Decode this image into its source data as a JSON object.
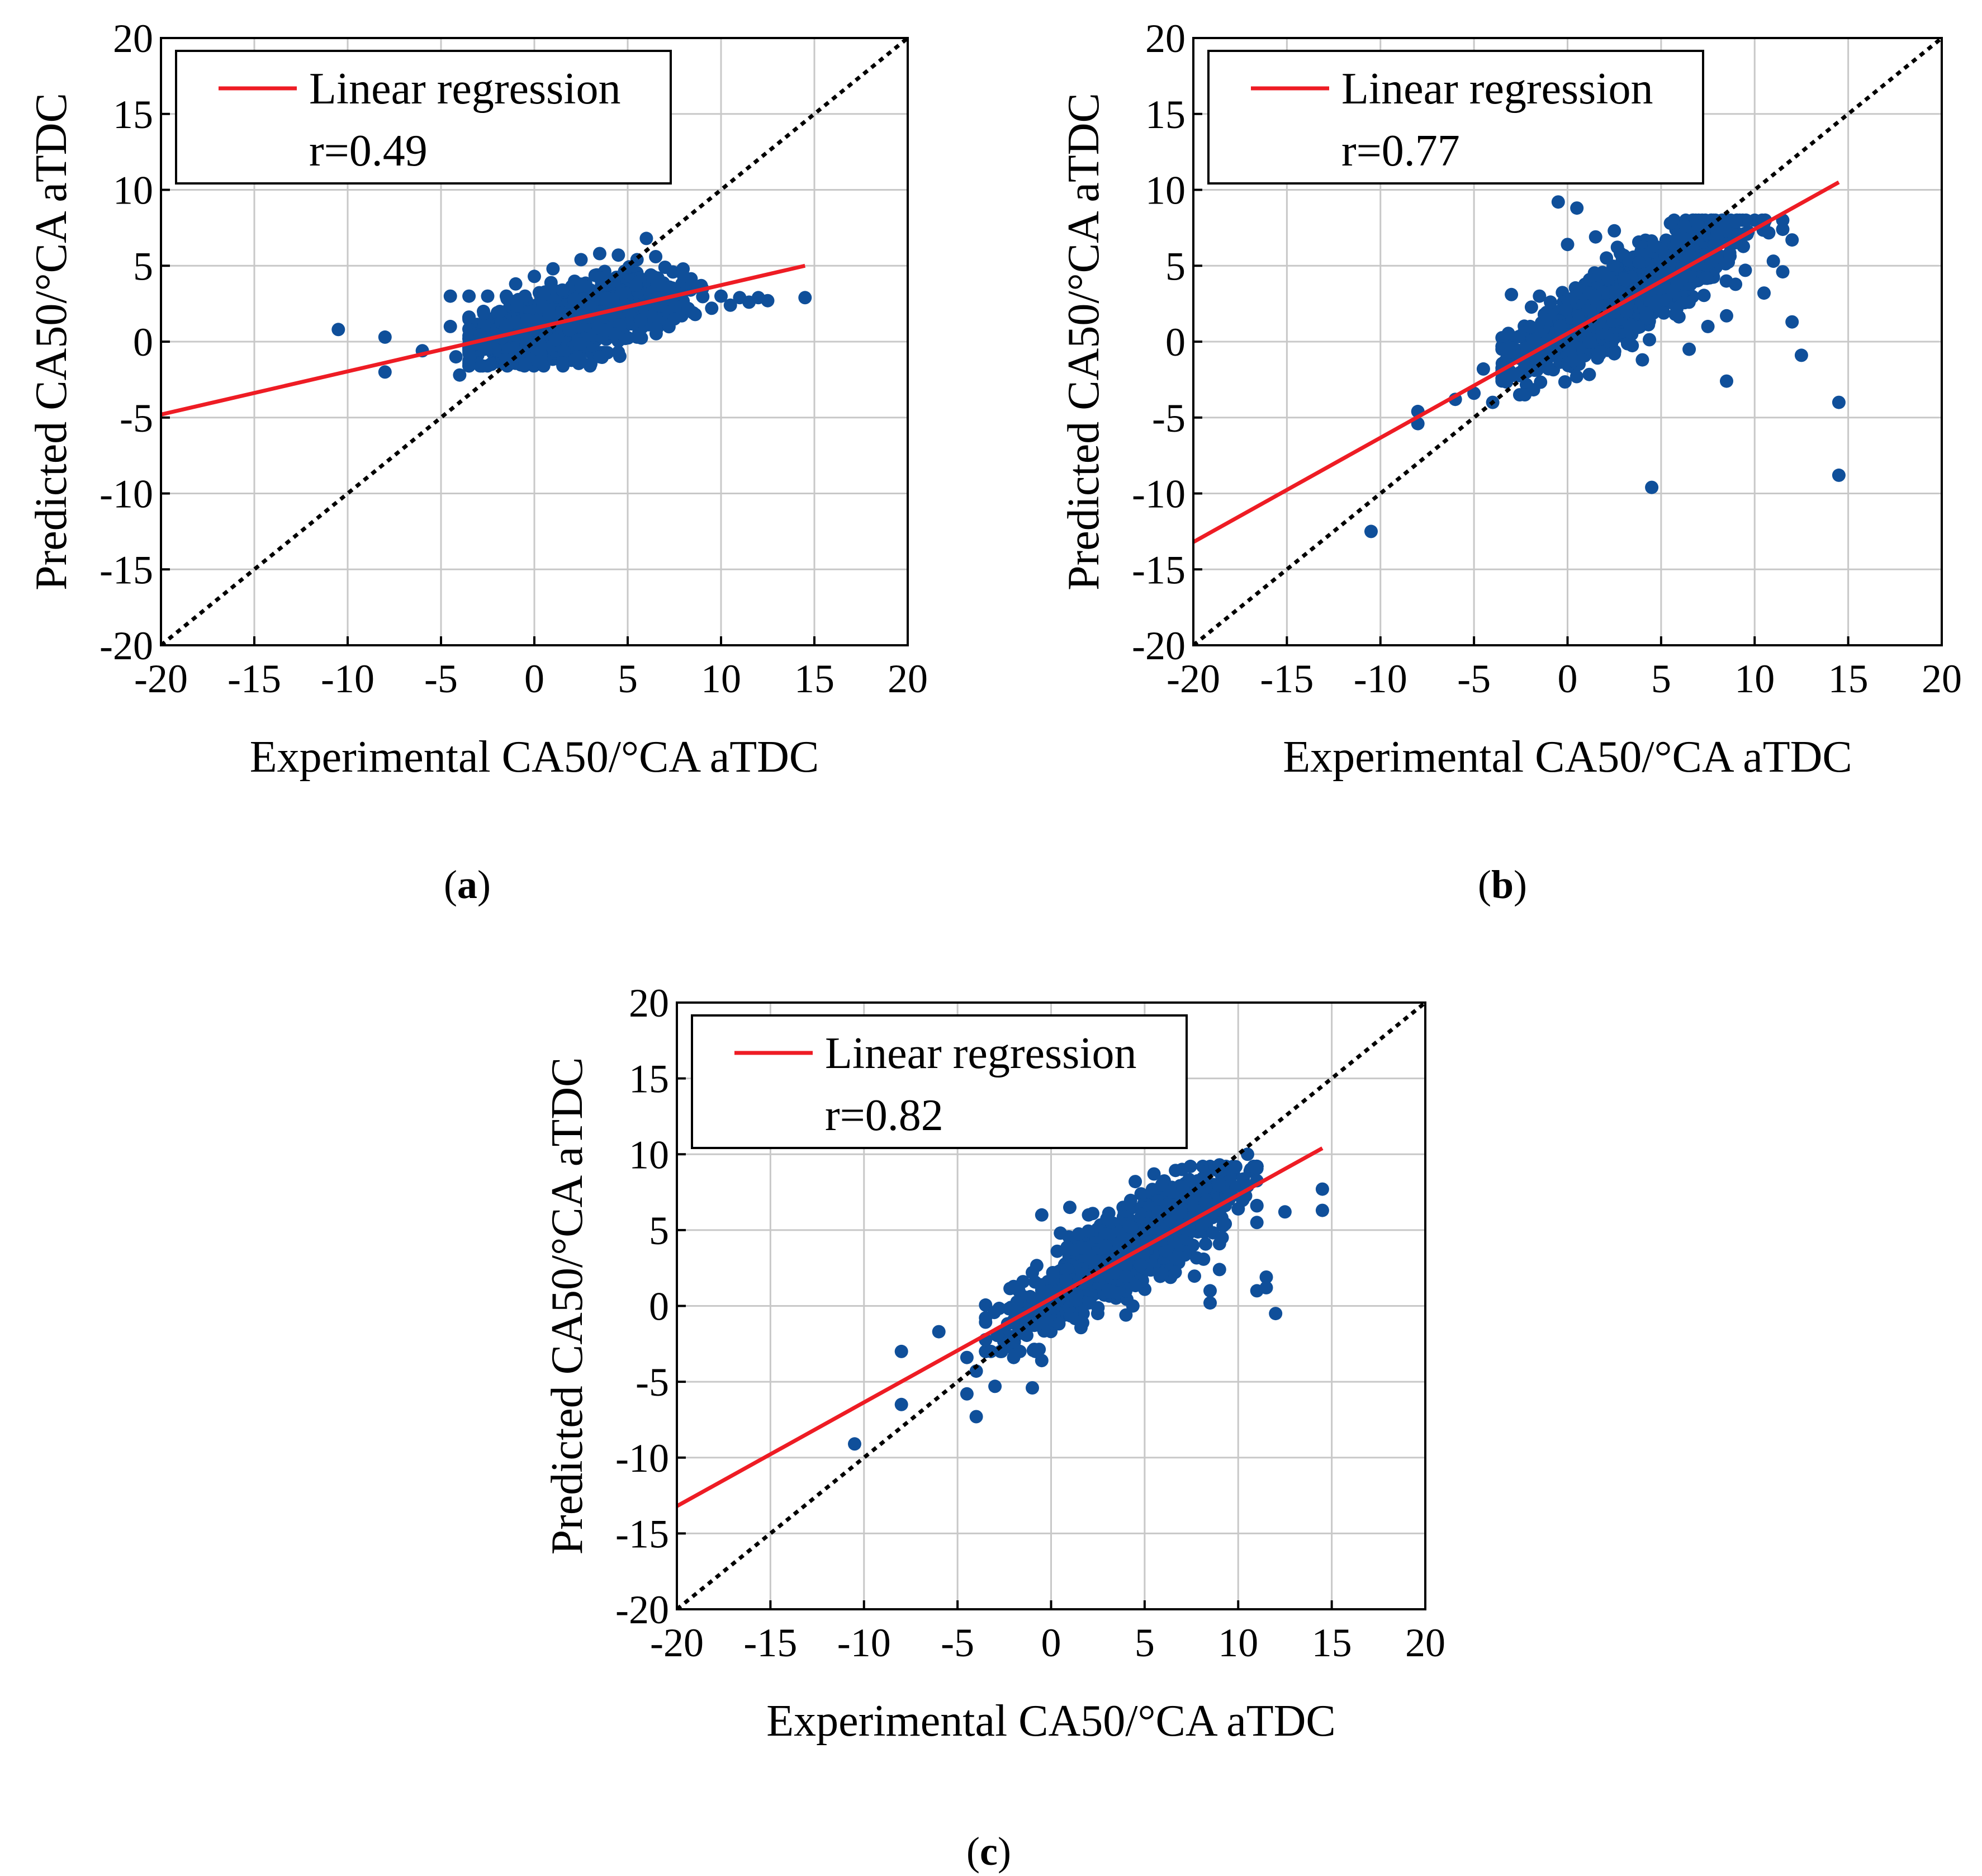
{
  "figure": {
    "colors": {
      "points": "#0f4f9a",
      "regression": "#ee1c24",
      "identity": "#000000",
      "grid": "#c8c8c8"
    }
  },
  "chart_data": [
    {
      "id": "a",
      "type": "scatter",
      "caption_letter": "a",
      "xlabel": "Experimental CA50/°CA aTDC",
      "ylabel": "Predicted CA50/°CA aTDC",
      "xlim": [
        -20,
        20
      ],
      "ylim": [
        -20,
        20
      ],
      "xticks": [
        -20,
        -15,
        -10,
        -5,
        0,
        5,
        10,
        15,
        20
      ],
      "yticks": [
        -20,
        -15,
        -10,
        -5,
        0,
        5,
        10,
        15,
        20
      ],
      "grid": true,
      "legend_position": "top-left",
      "legend": {
        "line_label": "Linear regression",
        "stat_label": "r=0.49"
      },
      "regression": {
        "x": [
          -20,
          14.5
        ],
        "y": [
          -4.8,
          5.0
        ]
      },
      "identity": {
        "x": [
          -20,
          20
        ],
        "y": [
          -20,
          20
        ]
      },
      "cluster": {
        "x_center": 2.3,
        "x_sd": 2.6,
        "x_range": [
          -3.5,
          12.5
        ],
        "slope": 0.28,
        "intercept": 0.9,
        "y_sd": 1.0,
        "y_range": [
          -1.6,
          6.0
        ]
      },
      "points": [
        [
          -10.5,
          0.8
        ],
        [
          -8,
          0.3
        ],
        [
          -8,
          -2.0
        ],
        [
          -6,
          -0.6
        ],
        [
          -4.5,
          1.0
        ],
        [
          -4.2,
          -1.0
        ],
        [
          -4,
          -2.2
        ],
        [
          -4.5,
          3.0
        ],
        [
          -3.5,
          3.0
        ],
        [
          -2.5,
          3.0
        ],
        [
          -1.5,
          3.0
        ],
        [
          -0.5,
          3.0
        ],
        [
          0.5,
          3.1
        ],
        [
          1.5,
          3.4
        ],
        [
          2.5,
          3.7
        ],
        [
          3.5,
          4.2
        ],
        [
          2.5,
          5.4
        ],
        [
          3.5,
          5.8
        ],
        [
          4.5,
          5.7
        ],
        [
          5.5,
          5.4
        ],
        [
          6.0,
          6.8
        ],
        [
          6.5,
          5.6
        ],
        [
          7.0,
          4.9
        ],
        [
          8.0,
          4.3
        ],
        [
          9.0,
          3.5
        ],
        [
          10.0,
          3.0
        ],
        [
          11.0,
          2.9
        ],
        [
          11.5,
          2.6
        ],
        [
          12.0,
          2.9
        ],
        [
          12.5,
          2.7
        ],
        [
          14.5,
          2.9
        ],
        [
          0.5,
          -1.6
        ],
        [
          1.5,
          -1.4
        ],
        [
          2.5,
          -1.3
        ],
        [
          3.5,
          -1.0
        ],
        [
          4.5,
          -0.7
        ],
        [
          -1.5,
          -1.2
        ],
        [
          -0.5,
          -1.5
        ],
        [
          5.5,
          0.3
        ],
        [
          6.5,
          0.9
        ],
        [
          7.5,
          1.5
        ],
        [
          8.5,
          1.9
        ],
        [
          9.5,
          2.2
        ],
        [
          10.5,
          2.4
        ],
        [
          1.0,
          4.8
        ],
        [
          -1.0,
          3.8
        ],
        [
          0.0,
          4.3
        ]
      ]
    },
    {
      "id": "b",
      "type": "scatter",
      "caption_letter": "b",
      "xlabel": "Experimental CA50/°CA aTDC",
      "ylabel": "Predicted CA50/°CA aTDC",
      "xlim": [
        -20,
        20
      ],
      "ylim": [
        -20,
        20
      ],
      "xticks": [
        -20,
        -15,
        -10,
        -5,
        0,
        5,
        10,
        15,
        20
      ],
      "yticks": [
        -20,
        -15,
        -10,
        -5,
        0,
        5,
        10,
        15,
        20
      ],
      "grid": true,
      "legend_position": "top-left",
      "legend": {
        "line_label": "Linear regression",
        "stat_label": "r=0.77"
      },
      "regression": {
        "x": [
          -20,
          14.5
        ],
        "y": [
          -13.2,
          10.5
        ]
      },
      "identity": {
        "x": [
          -20,
          20
        ],
        "y": [
          -20,
          20
        ]
      },
      "cluster": {
        "x_center": 3.3,
        "x_sd": 2.6,
        "x_range": [
          -3.5,
          11.5
        ],
        "slope": 0.72,
        "intercept": 0.7,
        "y_sd": 1.2,
        "y_range": [
          -3.5,
          8.0
        ]
      },
      "points": [
        [
          -10.5,
          -12.5
        ],
        [
          -8,
          -4.6
        ],
        [
          -8,
          -5.4
        ],
        [
          -6,
          -3.8
        ],
        [
          -5,
          -3.4
        ],
        [
          -4.5,
          -1.8
        ],
        [
          -4,
          -4.0
        ],
        [
          -3.5,
          -0.5
        ],
        [
          -3,
          3.1
        ],
        [
          -1.5,
          3.0
        ],
        [
          -0.5,
          9.2
        ],
        [
          0.5,
          8.8
        ],
        [
          0.0,
          6.4
        ],
        [
          1.5,
          6.9
        ],
        [
          2.5,
          7.3
        ],
        [
          4.5,
          -9.6
        ],
        [
          4.0,
          -1.2
        ],
        [
          2.5,
          -0.8
        ],
        [
          6.5,
          -0.5
        ],
        [
          7.5,
          1.0
        ],
        [
          8.5,
          1.7
        ],
        [
          8.5,
          -2.6
        ],
        [
          9.5,
          4.7
        ],
        [
          10.5,
          3.2
        ],
        [
          11.0,
          5.3
        ],
        [
          11.5,
          4.6
        ],
        [
          12.0,
          1.3
        ],
        [
          12.5,
          -0.9
        ],
        [
          14.5,
          -4.0
        ],
        [
          14.5,
          -8.8
        ],
        [
          12.0,
          6.7
        ],
        [
          11.5,
          7.4
        ],
        [
          10.5,
          7.8
        ],
        [
          9.0,
          7.9
        ],
        [
          7.0,
          7.6
        ],
        [
          5.5,
          7.8
        ],
        [
          -2.0,
          1.0
        ]
      ]
    },
    {
      "id": "c",
      "type": "scatter",
      "caption_letter": "c",
      "xlabel": "Experimental CA50/°CA aTDC",
      "ylabel": "Predicted CA50/°CA aTDC",
      "xlim": [
        -20,
        20
      ],
      "ylim": [
        -20,
        20
      ],
      "xticks": [
        -20,
        -15,
        -10,
        -5,
        0,
        5,
        10,
        15,
        20
      ],
      "yticks": [
        -20,
        -15,
        -10,
        -5,
        0,
        5,
        10,
        15,
        20
      ],
      "grid": true,
      "legend_position": "top-left",
      "legend": {
        "line_label": "Linear regression",
        "stat_label": "r=0.82"
      },
      "regression": {
        "x": [
          -20,
          14.5
        ],
        "y": [
          -13.2,
          10.4
        ]
      },
      "identity": {
        "x": [
          -20,
          20
        ],
        "y": [
          -20,
          20
        ]
      },
      "cluster": {
        "x_center": 4.2,
        "x_sd": 2.8,
        "x_range": [
          -3.5,
          11.0
        ],
        "slope": 0.75,
        "intercept": 0.6,
        "y_sd": 1.2,
        "y_range": [
          -3.0,
          9.2
        ]
      },
      "points": [
        [
          -10.5,
          -9.1
        ],
        [
          -8,
          -3.0
        ],
        [
          -8,
          -6.5
        ],
        [
          -6,
          -1.7
        ],
        [
          -4.5,
          -3.4
        ],
        [
          -4.5,
          -5.8
        ],
        [
          -4,
          -4.3
        ],
        [
          -4,
          -7.3
        ],
        [
          -3,
          -5.3
        ],
        [
          -2,
          -3.4
        ],
        [
          -1,
          -5.4
        ],
        [
          -0.5,
          -3.6
        ],
        [
          -0.5,
          6.0
        ],
        [
          0.5,
          4.8
        ],
        [
          1.0,
          6.5
        ],
        [
          4.0,
          -0.6
        ],
        [
          8.5,
          1.0
        ],
        [
          8.5,
          0.2
        ],
        [
          9.0,
          2.4
        ],
        [
          9.0,
          4.1
        ],
        [
          10.0,
          6.4
        ],
        [
          10.5,
          7.9
        ],
        [
          11.0,
          5.5
        ],
        [
          11.0,
          1.0
        ],
        [
          11.5,
          1.9
        ],
        [
          11.5,
          1.2
        ],
        [
          12.0,
          -0.5
        ],
        [
          12.5,
          6.2
        ],
        [
          14.5,
          7.7
        ],
        [
          14.5,
          6.3
        ],
        [
          10.5,
          10.0
        ],
        [
          9.0,
          9.3
        ],
        [
          7.0,
          9.0
        ],
        [
          5.5,
          8.7
        ],
        [
          4.5,
          8.2
        ],
        [
          -1.0,
          2.2
        ],
        [
          2.0,
          6.0
        ]
      ]
    }
  ]
}
